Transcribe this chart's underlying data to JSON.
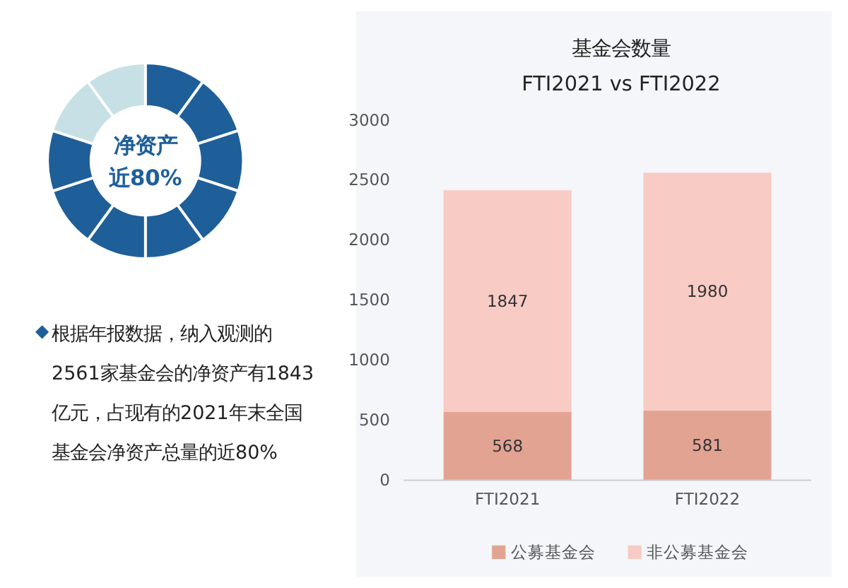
{
  "chart_data": [
    {
      "type": "donut",
      "categories": [
        null,
        null,
        null,
        null,
        null,
        null,
        null,
        null,
        null,
        null
      ],
      "values": [
        10,
        10,
        10,
        10,
        10,
        10,
        10,
        10,
        10,
        10
      ],
      "colors": [
        "#1f5f99",
        "#1f5f99",
        "#1f5f99",
        "#1f5f99",
        "#1f5f99",
        "#1f5f99",
        "#1f5f99",
        "#1f5f99",
        "#c6e0e6",
        "#c6e0e6"
      ],
      "annotations": [
        "净资产",
        "近80%",
        "根据年报数据，纳入观测的2561家基金会的净资产有1843亿元，占现有的2021年末全国基金会净资产总量的近80%"
      ]
    },
    {
      "type": "bar",
      "title": "基金会数量",
      "subtitle": "FTI2021 vs FTI2022",
      "categories": [
        "FTI2021",
        "FTI2022"
      ],
      "stacked": true,
      "data_labels": true,
      "legend": "bottom",
      "grid": false,
      "ylim": [
        0,
        3000
      ],
      "yticks": [
        0,
        500,
        1000,
        1500,
        2000,
        2500,
        3000
      ],
      "series": [
        {
          "name": "公募基金会",
          "color": "#e3a393",
          "values": [
            568,
            581
          ]
        },
        {
          "name": "非公募基金会",
          "color": "#f8cbc4",
          "values": [
            1847,
            1980
          ]
        }
      ]
    }
  ]
}
